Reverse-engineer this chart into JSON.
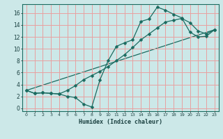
{
  "xlabel": "Humidex (Indice chaleur)",
  "xlim": [
    -0.5,
    23.5
  ],
  "ylim": [
    -0.5,
    17.5
  ],
  "xticks": [
    0,
    1,
    2,
    3,
    4,
    5,
    6,
    7,
    8,
    9,
    10,
    11,
    12,
    13,
    14,
    15,
    16,
    17,
    18,
    19,
    20,
    21,
    22,
    23
  ],
  "yticks": [
    0,
    2,
    4,
    6,
    8,
    10,
    12,
    14,
    16
  ],
  "bg_color": "#cce8e8",
  "grid_color": "#e8a0a0",
  "line_color": "#1a6b60",
  "line1_x": [
    0,
    1,
    2,
    3,
    4,
    5,
    6,
    7,
    8,
    9,
    10,
    11,
    12,
    13,
    14,
    15,
    16,
    17,
    18,
    19,
    20,
    21,
    22,
    23
  ],
  "line1_y": [
    3.0,
    2.5,
    2.6,
    2.5,
    2.4,
    2.0,
    1.8,
    0.7,
    0.2,
    4.8,
    8.0,
    10.4,
    11.0,
    11.5,
    14.6,
    15.0,
    17.0,
    16.5,
    15.8,
    15.2,
    12.8,
    12.0,
    12.1,
    13.2
  ],
  "line2_x": [
    0,
    1,
    2,
    3,
    4,
    5,
    6,
    7,
    8,
    9,
    10,
    11,
    12,
    13,
    14,
    15,
    16,
    17,
    18,
    19,
    20,
    21,
    22,
    23
  ],
  "line2_y": [
    3.0,
    2.5,
    2.6,
    2.5,
    2.4,
    3.0,
    3.8,
    4.8,
    5.5,
    6.2,
    7.0,
    8.0,
    9.0,
    10.2,
    11.5,
    12.5,
    13.5,
    14.5,
    14.8,
    15.1,
    14.4,
    13.0,
    12.5,
    13.2
  ],
  "line3_x": [
    0,
    23
  ],
  "line3_y": [
    3.0,
    13.2
  ],
  "markersize": 2.5
}
